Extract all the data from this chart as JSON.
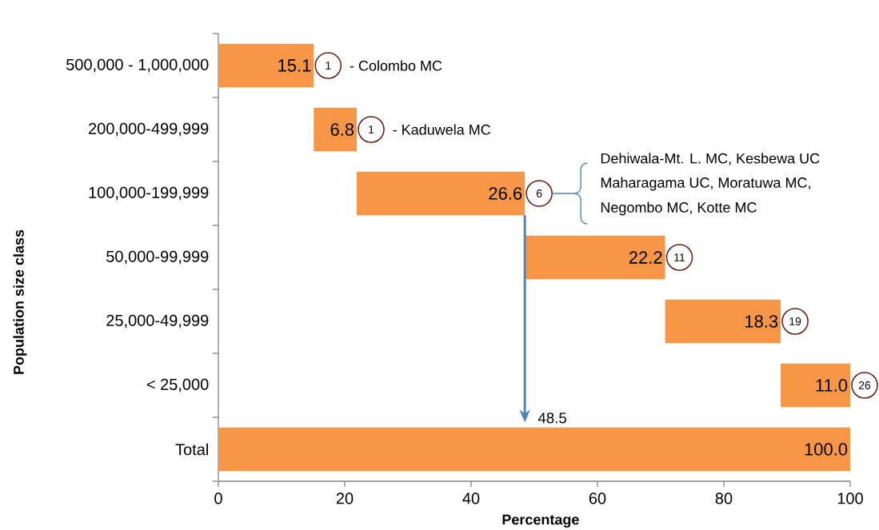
{
  "chart_data": {
    "type": "bar",
    "orientation": "horizontal",
    "xlabel": "Percentage",
    "ylabel": "Population size class",
    "categories": [
      "500,000 - 1,000,000",
      "200,000-499,999",
      "100,000-199,999",
      "50,000-99,999",
      "25,000-49,999",
      "< 25,000",
      "Total"
    ],
    "values": [
      15.1,
      6.8,
      26.6,
      22.2,
      18.3,
      11.0,
      100.0
    ],
    "base": [
      0,
      15.1,
      21.9,
      48.5,
      70.7,
      89.0,
      0
    ],
    "value_labels": [
      "15.1",
      "6.8",
      "26.6",
      "22.2",
      "18.3",
      "11.0",
      "100.0"
    ],
    "color": "#f79646",
    "xlim": [
      0,
      100
    ],
    "xticks": [
      0,
      20,
      40,
      60,
      80,
      100
    ],
    "annotations": [
      "1",
      "1",
      "6",
      "11",
      "19",
      "26",
      "- Colombo MC",
      "- Kaduwela MC",
      "Dehiwala-Mt. L. MC, Kesbewa UC",
      "Maharagama UC, Moratuwa MC,",
      "Negombo MC,  Kotte MC",
      "48.5"
    ]
  }
}
